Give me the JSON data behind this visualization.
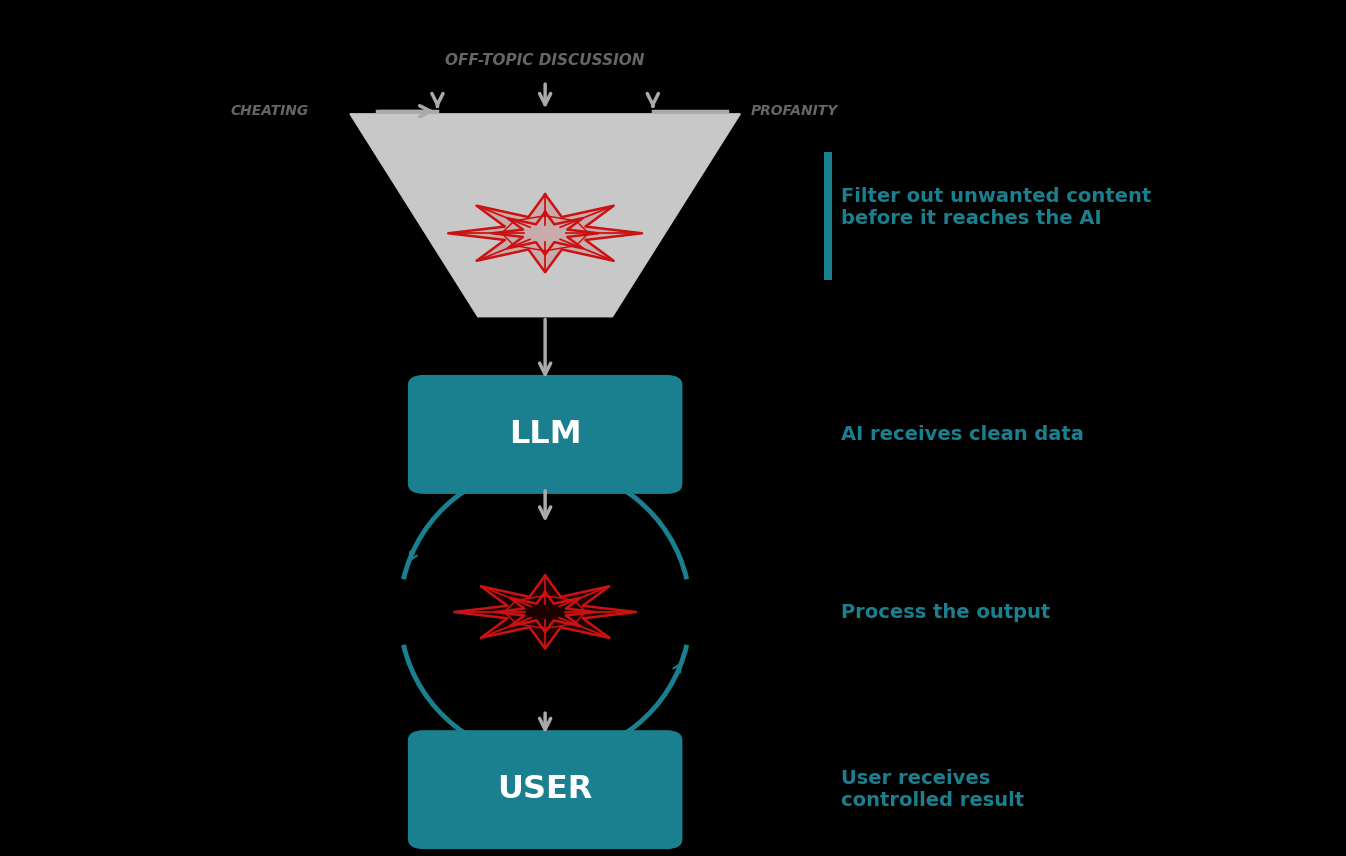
{
  "bg_color": "#000000",
  "teal_color": "#1a7f8e",
  "red_color": "#cc1111",
  "gray_color": "#aaaaaa",
  "white": "#ffffff",
  "dark_text": "#666666",
  "filter_label": "OFF-TOPIC DISCUSSION",
  "cheating_label": "CHEATING",
  "profanity_label": "PROFANITY",
  "llm_label": "LLM",
  "user_label": "USER",
  "filter_text": "Filter out unwanted content\nbefore it reaches the AI",
  "llm_text": "AI receives clean data",
  "process_text": "Process the output",
  "user_text": "User receives\ncontrolled result"
}
